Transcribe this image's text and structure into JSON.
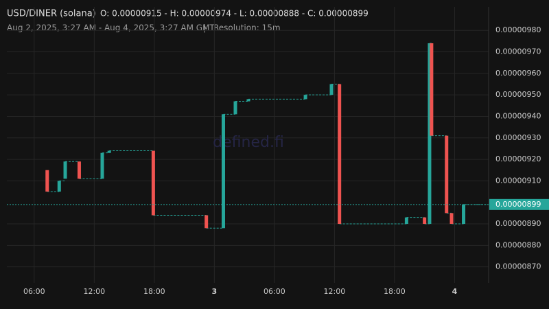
{
  "chart_data": {
    "type": "candlestick",
    "title": "USD/DINER (solana)",
    "ohlc_summary": "O: 0.00000915 - H: 0.00000974 - L: 0.00000888 - C: 0.00000899",
    "range": "Aug 2, 2025, 3:27 AM - Aug 4, 2025, 3:27 AM GMT",
    "separator": "|",
    "resolution": "Resolution: 15m",
    "watermark": "defined.fi",
    "up_color": "#26a69a",
    "down_color": "#ef5350",
    "grid": true,
    "x": [
      7.3,
      8.5,
      9.1,
      10.5,
      12.8,
      13.5,
      17.9,
      23.2,
      24.9,
      26.1,
      27.4,
      33.1,
      35.7,
      36.5,
      43.2,
      45.0,
      45.5,
      45.7,
      47.2,
      47.7,
      48.9
    ],
    "open": [
      9.15e-06,
      9.05e-06,
      9.11e-06,
      9.19e-06,
      9.11e-06,
      9.23e-06,
      9.24e-06,
      8.94e-06,
      8.88e-06,
      9.41e-06,
      9.47e-06,
      9.48e-06,
      9.5e-06,
      9.55e-06,
      8.9e-06,
      8.93e-06,
      8.9e-06,
      9.74e-06,
      9.31e-06,
      8.95e-06,
      8.9e-06
    ],
    "close": [
      9.05e-06,
      9.1e-06,
      9.19e-06,
      9.11e-06,
      9.23e-06,
      9.24e-06,
      8.94e-06,
      8.88e-06,
      9.41e-06,
      9.47e-06,
      9.48e-06,
      9.5e-06,
      9.55e-06,
      8.9e-06,
      8.93e-06,
      8.9e-06,
      9.74e-06,
      9.31e-06,
      8.95e-06,
      8.9e-06,
      8.99e-06
    ],
    "xlim": [
      3.27,
      51.4
    ],
    "xticks": [
      {
        "value": 6,
        "label": "06:00"
      },
      {
        "value": 12,
        "label": "12:00"
      },
      {
        "value": 18,
        "label": "18:00"
      },
      {
        "value": 24,
        "label": "3"
      },
      {
        "value": 30,
        "label": "06:00"
      },
      {
        "value": 36,
        "label": "12:00"
      },
      {
        "value": 42,
        "label": "18:00"
      },
      {
        "value": 48,
        "label": "4"
      }
    ],
    "ylim": [
      8.6254e-06,
      9.9092e-06
    ],
    "yticks": [
      {
        "value": 9.8e-06,
        "label": "0.00000980"
      },
      {
        "value": 9.7e-06,
        "label": "0.00000970"
      },
      {
        "value": 9.6e-06,
        "label": "0.00000960"
      },
      {
        "value": 9.5e-06,
        "label": "0.00000950"
      },
      {
        "value": 9.4e-06,
        "label": "0.00000940"
      },
      {
        "value": 9.3e-06,
        "label": "0.00000930"
      },
      {
        "value": 9.2e-06,
        "label": "0.00000920"
      },
      {
        "value": 9.1e-06,
        "label": "0.00000910"
      },
      {
        "value": 8.9e-06,
        "label": "0.00000890"
      },
      {
        "value": 8.8e-06,
        "label": "0.00000880"
      },
      {
        "value": 8.7e-06,
        "label": "0.00000870"
      }
    ],
    "last_price": {
      "value": 8.99e-06,
      "label": "0.00000899"
    }
  }
}
